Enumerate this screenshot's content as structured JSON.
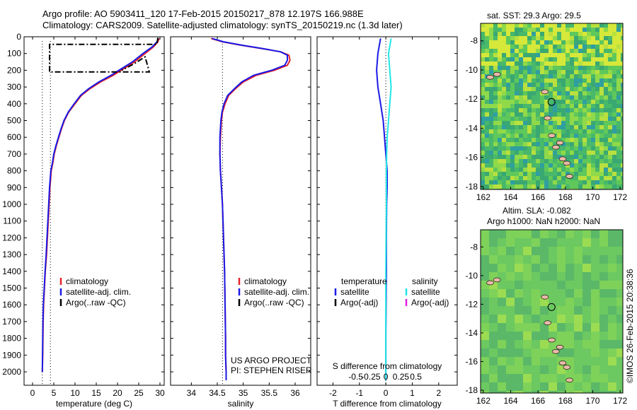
{
  "header": {
    "line1": "Argo profile: AO 5903411_120 17-Feb-2015 20150217_878 12.197S 166.988E",
    "line2": "Climatology: CARS2009. Satellite-adjusted climatology: synTS_20150219.nc (1.3d later)"
  },
  "map_titles": {
    "sst": "sat. SST: 29.3 Argo: 29.5",
    "sla1": "Altim. SLA: -0.082",
    "sla2": "Argo h1000: NaN h2000: NaN"
  },
  "credit": "©IMOS 26-Feb-2015 20:38:36",
  "project": {
    "line1": "US ARGO PROJECT",
    "line2": "PI: STEPHEN RISER"
  },
  "legend": {
    "climatology": "climatology",
    "satellite_adj": "satellite-adj. clim.",
    "argo_raw": "Argo(..raw -QC)",
    "temperature": "temperature",
    "salinity": "salinity",
    "satellite": "satellite",
    "argo_adj": "Argo(-adj)"
  },
  "colors": {
    "climatology": "#e8222a",
    "satellite": "#1a1ae6",
    "argo": "#000000",
    "sal_sat": "#22e6e6",
    "sal_argo": "#e020e0"
  },
  "chart_data": [
    {
      "type": "line",
      "xlabel": "temperature (deg C)",
      "xlim": [
        -2,
        31
      ],
      "xticks": [
        0,
        5,
        10,
        15,
        20,
        25,
        30
      ],
      "ylim": [
        0,
        2080
      ],
      "yticks": [
        0,
        100,
        200,
        300,
        400,
        500,
        600,
        700,
        800,
        900,
        1000,
        1100,
        1200,
        1300,
        1400,
        1500,
        1600,
        1700,
        1800,
        1900,
        2000
      ],
      "ytick_labels": [
        "0",
        "100",
        "200",
        "300",
        "400",
        "500",
        "600",
        "700",
        "800",
        "900",
        "1000",
        "1100",
        "1200",
        "1300",
        "1400",
        "1500",
        "1600",
        "1700",
        "1800",
        "1900",
        "2000"
      ],
      "y_reversed": true,
      "series": [
        {
          "name": "climatology",
          "x": [
            29.8,
            29.5,
            28.5,
            26.5,
            24,
            21.5,
            19,
            16,
            13.5,
            11.5,
            10,
            8.5,
            7.5,
            6.8,
            6.2,
            5.6,
            5.1,
            4.8,
            4.4,
            4.1,
            3.9,
            3.7,
            3.5,
            3.3,
            3.0,
            2.8,
            2.6,
            2.5,
            2.4,
            2.3
          ],
          "y": [
            10,
            30,
            60,
            100,
            150,
            190,
            230,
            270,
            310,
            350,
            400,
            450,
            500,
            550,
            600,
            650,
            700,
            750,
            800,
            900,
            1000,
            1100,
            1200,
            1300,
            1400,
            1500,
            1600,
            1700,
            1900,
            2000
          ]
        },
        {
          "name": "satellite-adj. clim.",
          "x": [
            29.6,
            29.3,
            28.2,
            26.0,
            23.5,
            21.0,
            18.5,
            15.6,
            13.2,
            11.3,
            9.8,
            8.4,
            7.4,
            6.7,
            6.1,
            5.5,
            5.0,
            4.7,
            4.3,
            4.0,
            3.8,
            3.6,
            3.4,
            3.2,
            2.95,
            2.75,
            2.55,
            2.45,
            2.35,
            2.3
          ],
          "y": [
            10,
            30,
            60,
            100,
            150,
            190,
            230,
            270,
            310,
            350,
            400,
            450,
            500,
            550,
            600,
            650,
            700,
            750,
            800,
            900,
            1000,
            1100,
            1200,
            1300,
            1400,
            1500,
            1600,
            1700,
            1900,
            2000
          ]
        },
        {
          "name": "Argo(..raw -QC)",
          "x": [
            29.5,
            29.3,
            4.0,
            4.0,
            27.5,
            26.5,
            24,
            21
          ],
          "y": [
            5,
            45,
            45,
            210,
            210,
            120,
            160,
            200
          ]
        }
      ],
      "ref_lines": [
        {
          "x": 2.3
        },
        {
          "x": 4.2
        }
      ]
    },
    {
      "type": "line",
      "xlabel": "salinity",
      "xlim": [
        33.6,
        36.3
      ],
      "xticks": [
        34,
        34.5,
        35,
        35.5,
        36
      ],
      "ylim": [
        0,
        2080
      ],
      "y_reversed": true,
      "series": [
        {
          "name": "climatology",
          "x": [
            34.38,
            34.6,
            34.95,
            35.35,
            35.72,
            35.88,
            35.9,
            35.85,
            35.6,
            35.25,
            35.0,
            34.85,
            34.72,
            34.65,
            34.6,
            34.58,
            34.56,
            34.55,
            34.56,
            34.58,
            34.6,
            34.62,
            34.64,
            34.65,
            34.66,
            34.66,
            34.67,
            34.67
          ],
          "y": [
            10,
            30,
            50,
            70,
            90,
            110,
            140,
            170,
            200,
            230,
            270,
            310,
            350,
            400,
            450,
            500,
            600,
            700,
            800,
            900,
            1000,
            1200,
            1400,
            1600,
            1800,
            1900,
            2000,
            2050
          ]
        },
        {
          "name": "satellite-adj. clim.",
          "x": [
            34.4,
            34.62,
            34.97,
            35.37,
            35.72,
            35.85,
            35.85,
            35.8,
            35.55,
            35.2,
            34.97,
            34.83,
            34.7,
            34.63,
            34.59,
            34.57,
            34.55,
            34.55,
            34.56,
            34.58,
            34.6,
            34.62,
            34.64,
            34.65,
            34.66,
            34.66,
            34.67,
            34.67
          ],
          "y": [
            10,
            30,
            50,
            70,
            90,
            110,
            140,
            170,
            200,
            230,
            270,
            310,
            350,
            400,
            450,
            500,
            600,
            700,
            800,
            900,
            1000,
            1200,
            1400,
            1600,
            1800,
            1900,
            2000,
            2050
          ]
        }
      ],
      "ref_lines": [
        {
          "x": 34.6
        }
      ]
    },
    {
      "type": "line",
      "xlabel": "T difference from climatology",
      "xlabel_top": "S difference from climatology",
      "xlim": [
        -2.6,
        2.7
      ],
      "xticks": [
        -2,
        -1,
        0,
        1,
        2
      ],
      "top_ticks": [
        -0.5,
        -0.25,
        0,
        0.25,
        0.5
      ],
      "ylim": [
        0,
        2080
      ],
      "y_reversed": true,
      "series": [
        {
          "name": "temperature satellite",
          "x": [
            -0.2,
            -0.3,
            -0.35,
            -0.3,
            -0.2,
            -0.1,
            -0.05,
            0,
            0.05,
            0.05,
            0.03,
            0.02,
            0.02,
            0.01,
            0,
            0,
            0,
            0
          ],
          "y": [
            10,
            100,
            200,
            300,
            400,
            500,
            600,
            700,
            800,
            900,
            1000,
            1200,
            1400,
            1600,
            1800,
            1900,
            2000,
            2050
          ]
        },
        {
          "name": "salinity satellite",
          "x": [
            0.2,
            0.1,
            0.15,
            0.2,
            0.15,
            0.1,
            0.05,
            0.03,
            0.02,
            0.02,
            0.01,
            0,
            0,
            0,
            0,
            0
          ],
          "y": [
            10,
            100,
            200,
            300,
            400,
            500,
            600,
            700,
            800,
            1000,
            1200,
            1400,
            1600,
            1800,
            2000,
            2050
          ]
        }
      ],
      "ref_lines": [
        {
          "x": 0
        }
      ]
    }
  ],
  "maps": [
    {
      "type": "heatmap",
      "xticks": [
        162,
        164,
        166,
        168,
        170,
        172
      ],
      "yticks": [
        -8,
        -10,
        -12,
        -14,
        -16,
        -18
      ],
      "ylim": [
        -18.2,
        -6.8
      ],
      "xlim": [
        161.8,
        172.2
      ],
      "marker": {
        "lon": 166.988,
        "lat": -12.197
      }
    },
    {
      "type": "heatmap",
      "xticks": [
        162,
        164,
        166,
        168,
        170,
        172
      ],
      "yticks": [
        -8,
        -10,
        -12,
        -14,
        -16,
        -18
      ],
      "ylim": [
        -18.2,
        -6.8
      ],
      "xlim": [
        161.8,
        172.2
      ],
      "marker": {
        "lon": 166.988,
        "lat": -12.197
      }
    }
  ]
}
